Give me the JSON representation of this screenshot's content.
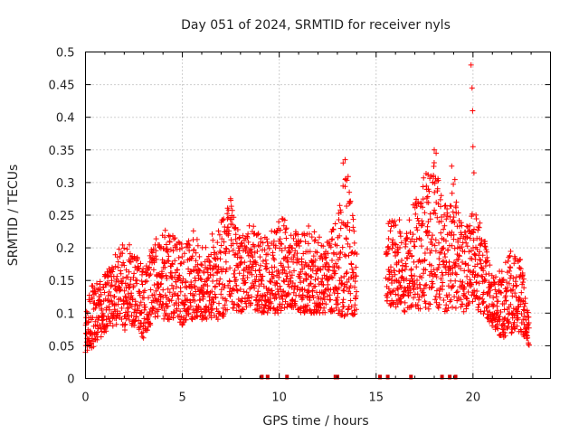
{
  "chart_data": {
    "type": "scatter",
    "title": "Day 051 of 2024, SRMTID for receiver nyls",
    "xlabel": "GPS time / hours",
    "ylabel": "SRMTID / TECUs",
    "xlim": [
      0,
      24
    ],
    "ylim": [
      0,
      0.5
    ],
    "x_ticks": [
      0,
      5,
      10,
      15,
      20
    ],
    "x_tick_labels": [
      "0",
      "5",
      "10",
      "15",
      "20"
    ],
    "y_ticks": [
      0,
      0.05,
      0.1,
      0.15,
      0.2,
      0.25,
      0.3,
      0.35,
      0.4,
      0.45,
      0.5
    ],
    "y_tick_labels": [
      "0",
      "0.05",
      "0.1",
      "0.15",
      "0.2",
      "0.25",
      "0.3",
      "0.35",
      "0.4",
      "0.45",
      "0.5"
    ],
    "grid": true,
    "marker": "plus",
    "series_color": "#ff0000",
    "series": [
      {
        "name": "SRMTID",
        "envelope": {
          "x": [
            0.0,
            0.5,
            1.0,
            1.5,
            2.0,
            2.5,
            3.0,
            3.5,
            4.0,
            4.5,
            5.0,
            5.5,
            6.0,
            6.5,
            7.0,
            7.5,
            8.0,
            8.5,
            9.0,
            9.5,
            10.0,
            10.5,
            11.0,
            11.5,
            12.0,
            12.5,
            13.0,
            13.5,
            14.0,
            14.5,
            15.0,
            15.5,
            16.0,
            16.5,
            17.0,
            17.5,
            18.0,
            18.5,
            19.0,
            19.5,
            20.0,
            20.5,
            21.0,
            21.5,
            22.0,
            22.5,
            22.9
          ],
          "low": [
            0.04,
            0.05,
            0.07,
            0.08,
            0.06,
            0.08,
            0.06,
            0.09,
            0.09,
            0.09,
            0.08,
            0.09,
            0.09,
            0.09,
            0.09,
            0.11,
            0.1,
            0.11,
            0.1,
            0.1,
            0.1,
            0.11,
            0.1,
            0.1,
            0.1,
            0.1,
            0.1,
            0.09,
            0.1,
            null,
            null,
            0.11,
            0.11,
            0.1,
            0.11,
            0.1,
            0.11,
            0.1,
            0.11,
            0.1,
            0.11,
            0.1,
            0.08,
            0.06,
            0.07,
            0.07,
            0.05
          ],
          "high": [
            0.13,
            0.15,
            0.16,
            0.19,
            0.21,
            0.2,
            0.17,
            0.21,
            0.23,
            0.22,
            0.21,
            0.23,
            0.2,
            0.22,
            0.24,
            0.28,
            0.22,
            0.24,
            0.23,
            0.22,
            0.25,
            0.24,
            0.22,
            0.24,
            0.22,
            0.21,
            0.25,
            0.33,
            0.2,
            null,
            null,
            0.24,
            0.26,
            0.22,
            0.29,
            0.31,
            0.35,
            0.26,
            0.32,
            0.22,
            0.27,
            0.23,
            0.16,
            0.17,
            0.2,
            0.18,
            0.09
          ]
        },
        "spikes": [
          [
            13.3,
            0.33
          ],
          [
            13.4,
            0.335
          ],
          [
            18.0,
            0.35
          ],
          [
            18.1,
            0.345
          ],
          [
            18.9,
            0.325
          ],
          [
            19.9,
            0.48
          ],
          [
            19.95,
            0.445
          ],
          [
            19.98,
            0.41
          ],
          [
            20.0,
            0.355
          ],
          [
            20.05,
            0.315
          ]
        ],
        "zero_markers_x": [
          9.1,
          9.4,
          10.4,
          12.9,
          13.0,
          15.2,
          15.6,
          16.8,
          18.4,
          18.8,
          19.1
        ]
      }
    ]
  }
}
